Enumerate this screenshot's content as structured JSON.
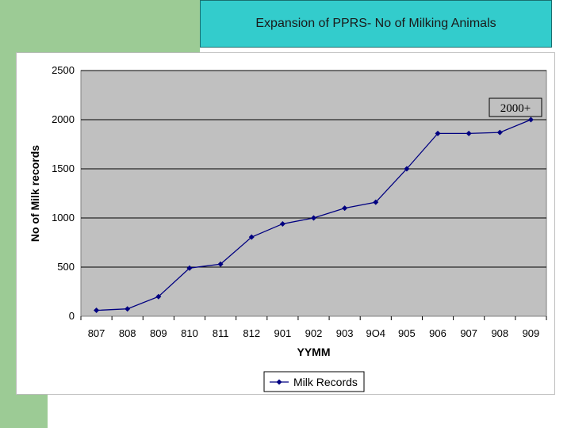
{
  "slide": {
    "title": "Expansion of PPRS- No of Milking Animals",
    "accent_green": "#9ccb95",
    "title_bg": "#33cccc"
  },
  "chart_data": {
    "type": "line",
    "categories": [
      "807",
      "808",
      "809",
      "810",
      "811",
      "812",
      "901",
      "902",
      "903",
      "9O4",
      "905",
      "906",
      "907",
      "908",
      "909"
    ],
    "series": [
      {
        "name": "Milk Records",
        "values": [
          60,
          75,
          200,
          490,
          530,
          805,
          940,
          1000,
          1100,
          1160,
          1500,
          1860,
          1860,
          1870,
          2000
        ],
        "color": "#000080"
      }
    ],
    "xlabel": "YYMM",
    "ylabel": "No of Milk records",
    "ylim": [
      0,
      2500
    ],
    "yticks": [
      0,
      500,
      1000,
      1500,
      2000,
      2500
    ],
    "grid": true,
    "plot_bg": "#c0c0c0",
    "legend": "bottom",
    "annotation": "2000+"
  }
}
